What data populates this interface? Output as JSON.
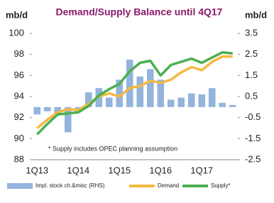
{
  "chart_data": {
    "type": "bar-line",
    "title": "Demand/Supply Balance until 4Q17",
    "y_label": "mb/d",
    "y2_label": "mb/d",
    "annotation": "* Supply includes OPEC planning assumption",
    "categories": [
      "1Q13",
      null,
      null,
      null,
      "1Q14",
      null,
      null,
      null,
      "1Q15",
      null,
      null,
      null,
      "1Q16",
      null,
      null,
      null,
      "1Q17",
      null,
      null,
      null
    ],
    "ylim": [
      88,
      100
    ],
    "yticks": [
      88,
      90,
      92,
      94,
      96,
      98,
      100
    ],
    "y2lim": [
      -2.5,
      3.5
    ],
    "y2ticks": [
      -2.5,
      -1.5,
      -0.5,
      0.5,
      1.5,
      2.5,
      3.5
    ],
    "grid": false,
    "legend": "bottom",
    "series": [
      {
        "name": "Impl. stock ch.&misc (RHS)",
        "type": "bar",
        "axis": "y2",
        "color": "#93b4dc",
        "values": [
          -0.35,
          -0.2,
          -0.3,
          -1.2,
          -0.15,
          0.7,
          0.9,
          0.45,
          1.3,
          2.25,
          1.45,
          1.8,
          1.3,
          0.35,
          0.45,
          0.65,
          0.6,
          0.9,
          0.2,
          0.1
        ]
      },
      {
        "name": "Demand",
        "type": "line",
        "color": "#f5b942",
        "values": [
          91.0,
          91.8,
          92.5,
          92.8,
          92.7,
          93.3,
          94.0,
          94.3,
          94.0,
          94.8,
          95.0,
          95.5,
          95.3,
          95.6,
          96.3,
          96.8,
          96.5,
          97.3,
          97.8,
          97.8
        ]
      },
      {
        "name": "Supply*",
        "type": "line",
        "color": "#4caf50",
        "values": [
          90.4,
          91.4,
          92.3,
          92.4,
          92.5,
          93.1,
          94.1,
          94.7,
          95.2,
          96.4,
          97.2,
          97.4,
          96.0,
          97.0,
          97.3,
          97.6,
          97.2,
          97.7,
          98.2,
          98.1
        ]
      }
    ]
  }
}
